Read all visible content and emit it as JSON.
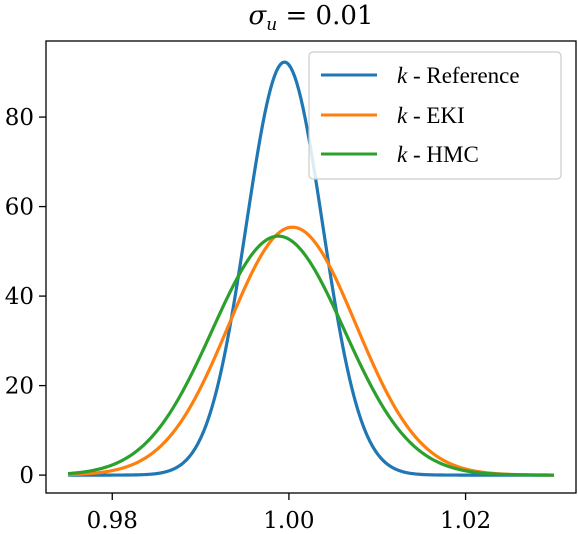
{
  "chart_data": {
    "type": "line",
    "title": "σ_u = 0.01",
    "title_parts": {
      "symbol": "σ",
      "subscript": "u",
      "relation": " = 0.01"
    },
    "xlabel": "",
    "ylabel": "",
    "xlim": [
      0.9725,
      1.0325
    ],
    "ylim": [
      -4,
      97
    ],
    "x_ticks": [
      0.98,
      1.0,
      1.02
    ],
    "x_tick_labels": [
      "0.98",
      "1.00",
      "1.02"
    ],
    "y_ticks": [
      0,
      20,
      40,
      60,
      80
    ],
    "y_tick_labels": [
      "0",
      "20",
      "40",
      "60",
      "80"
    ],
    "grid": false,
    "legend_position": "top-right",
    "series": [
      {
        "name": "k - Reference",
        "var": "k",
        "suffix": " - Reference",
        "color": "#1f77b4",
        "mean": 0.9995,
        "std": 0.00432,
        "peak": 92.3,
        "x_range": [
          0.975,
          1.03
        ]
      },
      {
        "name": "k - EKI",
        "var": "k",
        "suffix": " - EKI",
        "color": "#ff7f0e",
        "mean": 1.0004,
        "std": 0.0072,
        "peak": 55.4,
        "x_range": [
          0.975,
          1.03
        ]
      },
      {
        "name": "k - HMC",
        "var": "k",
        "suffix": " - HMC",
        "color": "#2ca02c",
        "mean": 0.9988,
        "std": 0.00748,
        "peak": 53.4,
        "x_range": [
          0.975,
          1.03
        ]
      }
    ]
  }
}
